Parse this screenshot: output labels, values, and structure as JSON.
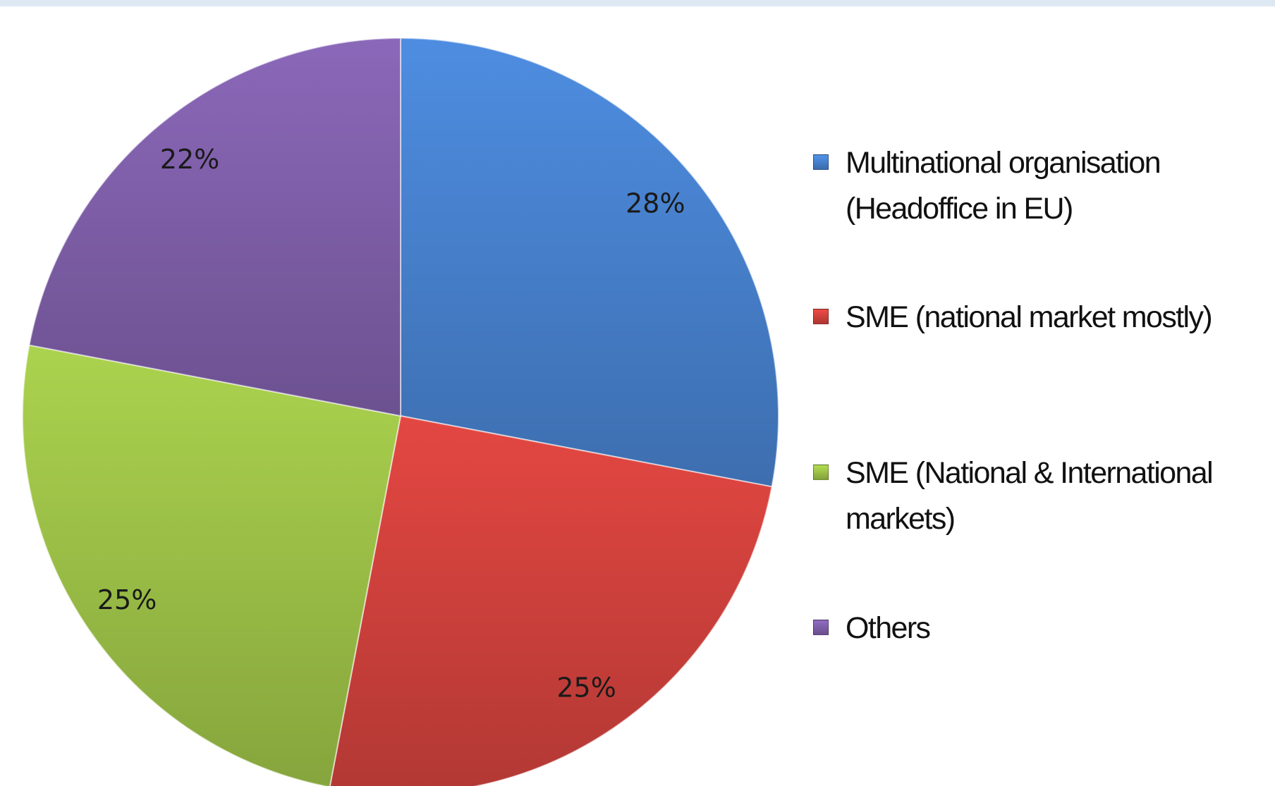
{
  "chart_data": {
    "type": "pie",
    "categories": [
      "Multinational organisation (Headoffice in EU)",
      "SME (national market mostly)",
      "SME (National & International markets)",
      "Others"
    ],
    "values": [
      28,
      25,
      25,
      22
    ],
    "value_labels": [
      "28%",
      "25%",
      "25%",
      "22%"
    ],
    "colors": [
      "#4a86d6",
      "#d9443f",
      "#a3c94a",
      "#8463b0"
    ],
    "start_angle": 0,
    "direction": "clockwise",
    "legend": "right"
  }
}
